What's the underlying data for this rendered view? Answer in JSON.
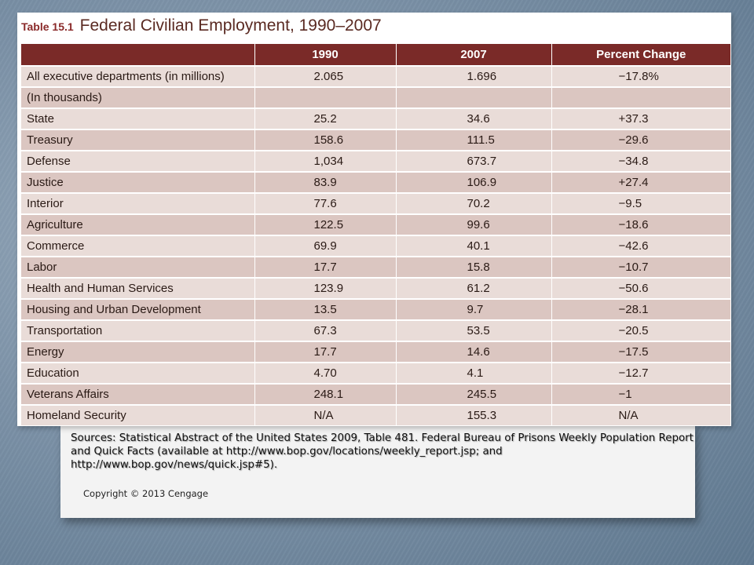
{
  "table": {
    "number": "Table 15.1",
    "title": "Federal Civilian Employment, 1990–2007",
    "headers": [
      "",
      "1990",
      "2007",
      "Percent Change"
    ],
    "rows": [
      [
        "All executive departments (in millions)",
        "2.065",
        "1.696",
        "−17.8%"
      ],
      [
        "(In thousands)",
        "",
        "",
        ""
      ],
      [
        "State",
        "25.2",
        "34.6",
        "+37.3"
      ],
      [
        "Treasury",
        "158.6",
        "111.5",
        "−29.6"
      ],
      [
        "Defense",
        "1,034",
        "673.7",
        "−34.8"
      ],
      [
        "Justice",
        "83.9",
        "106.9",
        "+27.4"
      ],
      [
        "Interior",
        "77.6",
        "70.2",
        "−9.5"
      ],
      [
        "Agriculture",
        "122.5",
        "99.6",
        "−18.6"
      ],
      [
        "Commerce",
        "69.9",
        "40.1",
        "−42.6"
      ],
      [
        "Labor",
        "17.7",
        "15.8",
        "−10.7"
      ],
      [
        "Health and Human Services",
        "123.9",
        "61.2",
        "−50.6"
      ],
      [
        "Housing and Urban Development",
        "13.5",
        "9.7",
        "−28.1"
      ],
      [
        "Transportation",
        "67.3",
        "53.5",
        "−20.5"
      ],
      [
        "Energy",
        "17.7",
        "14.6",
        "−17.5"
      ],
      [
        "Education",
        "4.70",
        "4.1",
        "−12.7"
      ],
      [
        "Veterans Affairs",
        "248.1",
        "245.5",
        "−1"
      ],
      [
        "Homeland Security",
        "N/A",
        "155.3",
        "N/A"
      ]
    ]
  },
  "sources": {
    "text": "Sources: Statistical Abstract of the United States 2009, Table 481.  Federal Bureau of Prisons Weekly Population Report and Quick Facts (available at http://www.bop.gov/locations/weekly_report.jsp; and http://www.bop.gov/news/quick.jsp#5).",
    "copyright": "Copyright © 2013 Cengage"
  },
  "colors": {
    "header": "#7a2a28",
    "row_light": "#e9dcd8",
    "row_dark": "#dbc6c1",
    "title": "#5a2a22"
  }
}
